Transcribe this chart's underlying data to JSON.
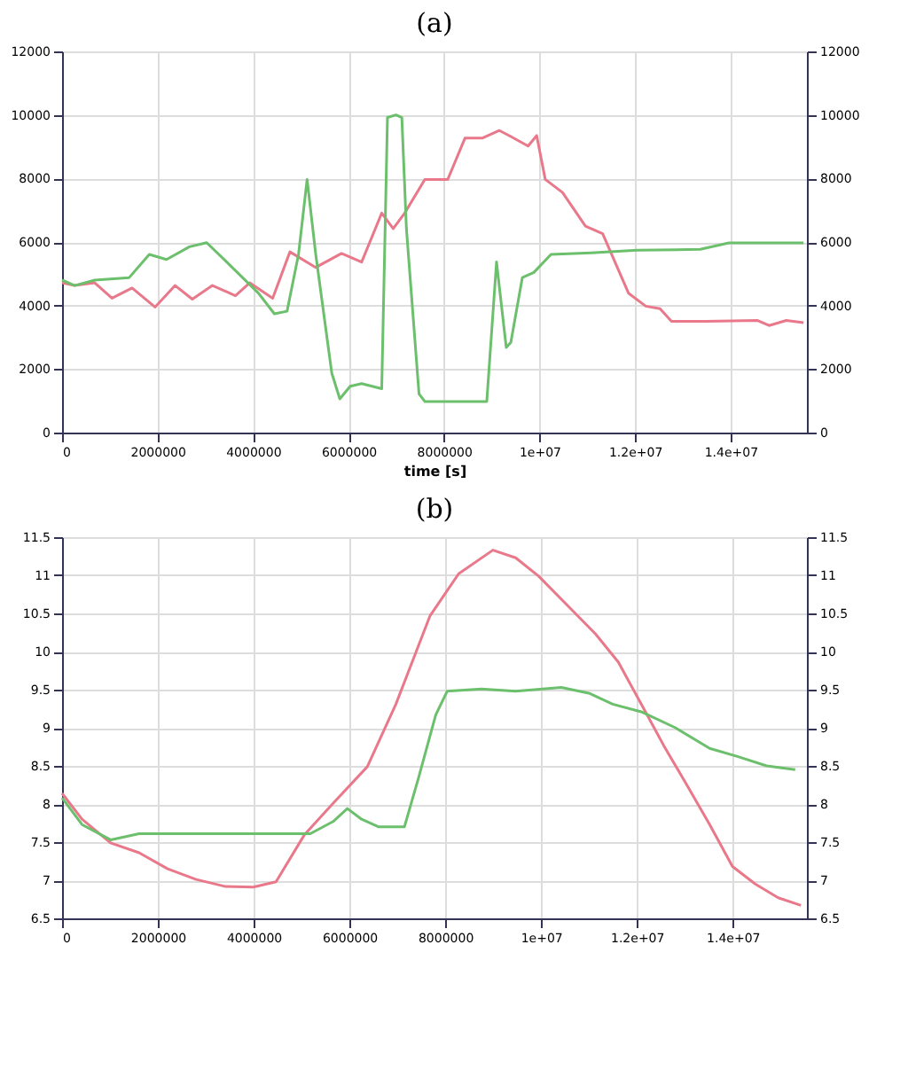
{
  "chart_data": [
    {
      "type": "line",
      "title": "(a)",
      "xlabel": "time [s]",
      "xlim": [
        0,
        15600000
      ],
      "xticks": [
        0,
        2000000,
        4000000,
        6000000,
        8000000,
        {
          "value": 10000000,
          "label": "1e+07"
        },
        {
          "value": 12000000,
          "label": "1.2e+07"
        },
        {
          "value": 14000000,
          "label": "1.4e+07"
        }
      ],
      "ylim": [
        0,
        12000
      ],
      "yticks": [
        0,
        2000,
        4000,
        6000,
        8000,
        10000,
        12000
      ],
      "y2lim": [
        0,
        12000
      ],
      "y2ticks": [
        0,
        2000,
        4000,
        6000,
        8000,
        10000,
        12000
      ],
      "grid": true,
      "line_style": "solid",
      "marker": "none",
      "series": [
        {
          "color": "#e8788a",
          "x": [
            0,
            264000,
            685000,
            1046000,
            1466000,
            1947000,
            2368000,
            2728000,
            3149000,
            3630000,
            3930000,
            4411000,
            4772000,
            5313000,
            5853000,
            6274000,
            6695000,
            6935000,
            7176000,
            7597000,
            8078000,
            8438000,
            8799000,
            9159000,
            9399000,
            9760000,
            9940000,
            10120000,
            10481000,
            10962000,
            11322000,
            11863000,
            12224000,
            12524000,
            12764000,
            13486000,
            14567000,
            14808000,
            15168000,
            15529000
          ],
          "values": [
            4715,
            4630,
            4715,
            4230,
            4550,
            3950,
            4630,
            4200,
            4630,
            4310,
            4715,
            4230,
            5690,
            5200,
            5640,
            5370,
            6910,
            6420,
            6910,
            7970,
            7970,
            9270,
            9270,
            9510,
            9320,
            9020,
            9350,
            7970,
            7560,
            6500,
            6260,
            4390,
            3980,
            3900,
            3500,
            3500,
            3530,
            3370,
            3530,
            3460
          ]
        },
        {
          "color": "#6cbf6c",
          "x": [
            0,
            264000,
            685000,
            1406000,
            1827000,
            2188000,
            2668000,
            3029000,
            3510000,
            4111000,
            4447000,
            4712000,
            4952000,
            5132000,
            5313000,
            5649000,
            5817000,
            6034000,
            6274000,
            6695000,
            6815000,
            6995000,
            7116000,
            7212000,
            7476000,
            7597000,
            8679000,
            8895000,
            9099000,
            9303000,
            9399000,
            9640000,
            9880000,
            10240000,
            11082000,
            12043000,
            13366000,
            13967000,
            15529000
          ],
          "values": [
            4800,
            4630,
            4800,
            4880,
            5610,
            5450,
            5850,
            5980,
            5280,
            4390,
            3740,
            3820,
            5610,
            7970,
            5610,
            1870,
            1060,
            1460,
            1540,
            1380,
            9920,
            10000,
            9920,
            6420,
            1220,
            980,
            980,
            980,
            5370,
            2680,
            2840,
            4880,
            5040,
            5610,
            5660,
            5740,
            5770,
            5970,
            5970
          ]
        }
      ]
    },
    {
      "type": "line",
      "title": "(b)",
      "xlim": [
        0,
        15550000
      ],
      "xticks": [
        0,
        2000000,
        4000000,
        6000000,
        8000000,
        {
          "value": 10000000,
          "label": "1e+07"
        },
        {
          "value": 12000000,
          "label": "1.2e+07"
        },
        {
          "value": 14000000,
          "label": "1.4e+07"
        }
      ],
      "ylim": [
        6.5,
        11.5
      ],
      "yticks": [
        6.5,
        7,
        7.5,
        8,
        8.5,
        9,
        9.5,
        10,
        10.5,
        11,
        11.5
      ],
      "y2lim": [
        6.5,
        11.5
      ],
      "y2ticks": [
        6.5,
        7,
        7.5,
        8,
        8.5,
        9,
        9.5,
        10,
        10.5,
        11,
        11.5
      ],
      "grid": true,
      "line_style": "solid",
      "marker": "none",
      "series": [
        {
          "color": "#e8788a",
          "x": [
            0,
            417000,
            1013000,
            1608000,
            2204000,
            2799000,
            3395000,
            3991000,
            4467000,
            5063000,
            5658000,
            6373000,
            6969000,
            7683000,
            8279000,
            8994000,
            9470000,
            9947000,
            10542000,
            11138000,
            11614000,
            12091000,
            12567000,
            13043000,
            13520000,
            13996000,
            14472000,
            14949000,
            15425000
          ],
          "values": [
            8.14,
            7.8,
            7.49,
            7.36,
            7.15,
            7.01,
            6.92,
            6.91,
            6.98,
            7.6,
            8.01,
            8.49,
            9.31,
            10.47,
            11.02,
            11.33,
            11.23,
            10.99,
            10.61,
            10.23,
            9.86,
            9.31,
            8.76,
            8.25,
            7.73,
            7.18,
            6.95,
            6.77,
            6.67
          ]
        },
        {
          "color": "#6cbf6c",
          "x": [
            0,
            417000,
            1013000,
            1608000,
            2799000,
            3991000,
            5182000,
            5658000,
            5956000,
            6254000,
            6611000,
            7147000,
            7445000,
            7802000,
            8041000,
            8755000,
            9470000,
            10423000,
            11018000,
            11495000,
            12091000,
            12805000,
            13520000,
            14115000,
            14711000,
            15306000
          ],
          "values": [
            8.08,
            7.73,
            7.53,
            7.61,
            7.61,
            7.61,
            7.61,
            7.77,
            7.94,
            7.8,
            7.7,
            7.7,
            8.35,
            9.17,
            9.48,
            9.51,
            9.48,
            9.53,
            9.45,
            9.31,
            9.21,
            9.0,
            8.73,
            8.62,
            8.5,
            8.45
          ]
        }
      ]
    }
  ]
}
